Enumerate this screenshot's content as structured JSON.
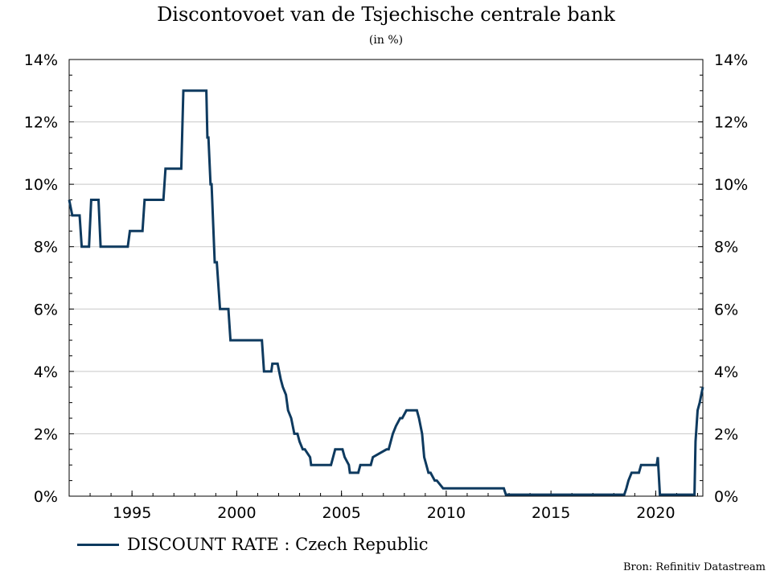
{
  "chart_data": {
    "type": "line",
    "title": "Discontovoet van de Tsjechische centrale bank",
    "subtitle": "(in %)",
    "xlabel": "",
    "ylabel": "",
    "xlim": [
      1992.0,
      2022.25
    ],
    "ylim": [
      0,
      14
    ],
    "x_ticks": [
      1995,
      2000,
      2005,
      2010,
      2015,
      2020
    ],
    "y_ticks": [
      0,
      2,
      4,
      6,
      8,
      10,
      12,
      14
    ],
    "y_tick_labels": [
      "0%",
      "2%",
      "4%",
      "6%",
      "8%",
      "10%",
      "12%",
      "14%"
    ],
    "y_axis_both_sides": true,
    "grid": "horizontal",
    "legend_position": "bottom-left",
    "colors": {
      "line": "#0e3a5f",
      "grid": "#c8c8c8"
    },
    "series": [
      {
        "name": "DISCOUNT RATE : Czech Republic",
        "x": [
          1992.0,
          1992.15,
          1992.5,
          1992.6,
          1992.95,
          1993.05,
          1993.4,
          1993.5,
          1994.8,
          1994.9,
          1995.5,
          1995.6,
          1996.5,
          1996.6,
          1997.35,
          1997.45,
          1998.55,
          1998.6,
          1998.65,
          1998.75,
          1998.8,
          1998.95,
          1999.05,
          1999.2,
          1999.6,
          1999.7,
          2001.2,
          2001.3,
          2001.65,
          2001.7,
          2001.95,
          2002.1,
          2002.2,
          2002.35,
          2002.45,
          2002.6,
          2002.75,
          2002.9,
          2003.0,
          2003.15,
          2003.25,
          2003.5,
          2003.55,
          2003.7,
          2004.5,
          2004.6,
          2004.7,
          2005.05,
          2005.15,
          2005.35,
          2005.4,
          2005.8,
          2005.9,
          2006.4,
          2006.5,
          2007.15,
          2007.25,
          2007.45,
          2007.6,
          2007.8,
          2007.9,
          2008.1,
          2008.2,
          2008.6,
          2008.7,
          2008.85,
          2008.95,
          2009.15,
          2009.25,
          2009.45,
          2009.55,
          2009.85,
          2012.75,
          2012.85,
          2018.5,
          2018.6,
          2018.7,
          2018.85,
          2019.2,
          2019.3,
          2020.05,
          2020.1,
          2020.2,
          2020.25,
          2021.85,
          2021.9,
          2022.0,
          2022.1,
          2022.25
        ],
        "values": [
          9.5,
          9.0,
          9.0,
          8.0,
          8.0,
          9.5,
          9.5,
          8.0,
          8.0,
          8.5,
          8.5,
          9.5,
          9.5,
          10.5,
          10.5,
          13.0,
          13.0,
          11.5,
          11.5,
          10.0,
          10.0,
          7.5,
          7.5,
          6.0,
          6.0,
          5.0,
          5.0,
          4.0,
          4.0,
          4.25,
          4.25,
          3.75,
          3.5,
          3.25,
          2.75,
          2.5,
          2.0,
          2.0,
          1.75,
          1.5,
          1.5,
          1.25,
          1.0,
          1.0,
          1.0,
          1.25,
          1.5,
          1.5,
          1.25,
          1.0,
          0.75,
          0.75,
          1.0,
          1.0,
          1.25,
          1.5,
          1.5,
          2.0,
          2.25,
          2.5,
          2.5,
          2.75,
          2.75,
          2.75,
          2.5,
          2.0,
          1.25,
          0.75,
          0.75,
          0.5,
          0.5,
          0.25,
          0.25,
          0.05,
          0.05,
          0.25,
          0.5,
          0.75,
          0.75,
          1.0,
          1.0,
          1.25,
          0.05,
          0.05,
          0.05,
          1.75,
          2.75,
          3.0,
          3.5
        ]
      }
    ],
    "source": "Bron: Refinitiv Datastream"
  }
}
